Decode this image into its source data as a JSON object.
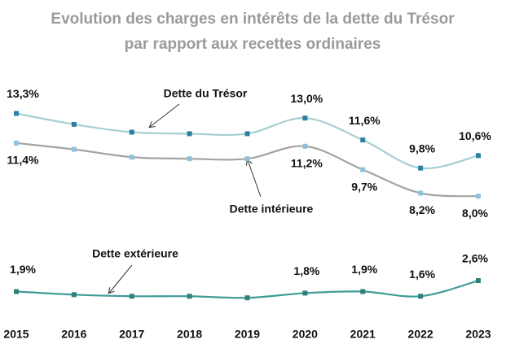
{
  "chart_data": {
    "type": "line",
    "title": [
      "Evolution des charges en intérêts de la dette du Trésor",
      "par rapport aux recettes ordinaires"
    ],
    "categories": [
      "2015",
      "2016",
      "2017",
      "2018",
      "2019",
      "2020",
      "2021",
      "2022",
      "2023"
    ],
    "ylim": [
      0,
      14
    ],
    "series": [
      {
        "name": "Dette du Trésor",
        "color": "#a6cfd0",
        "marker_color": "#2b7fa3",
        "values": [
          13.3,
          12.6,
          12.1,
          12.0,
          12.0,
          13.0,
          11.6,
          9.8,
          10.6
        ],
        "value_labels": [
          "13,3%",
          null,
          null,
          null,
          null,
          "13,0%",
          "11,6%",
          "9,8%",
          "10,6%"
        ]
      },
      {
        "name": "Dette intérieure",
        "color": "#a3a3a3",
        "marker_color": "#8fc1dc",
        "values": [
          11.4,
          11.0,
          10.5,
          10.4,
          10.4,
          11.2,
          9.7,
          8.2,
          8.0
        ],
        "value_labels": [
          "11,4%",
          null,
          null,
          null,
          null,
          "11,2%",
          "9,7%",
          "8,2%",
          "8,0%"
        ]
      },
      {
        "name": "Dette extérieure",
        "color": "#3f9c96",
        "marker_color": "#2f7f7a",
        "values": [
          1.9,
          1.7,
          1.6,
          1.6,
          1.5,
          1.8,
          1.9,
          1.6,
          2.6
        ],
        "value_labels": [
          "1,9%",
          null,
          null,
          null,
          null,
          "1,8%",
          "1,9%",
          "1,6%",
          "2,6%"
        ]
      }
    ]
  }
}
